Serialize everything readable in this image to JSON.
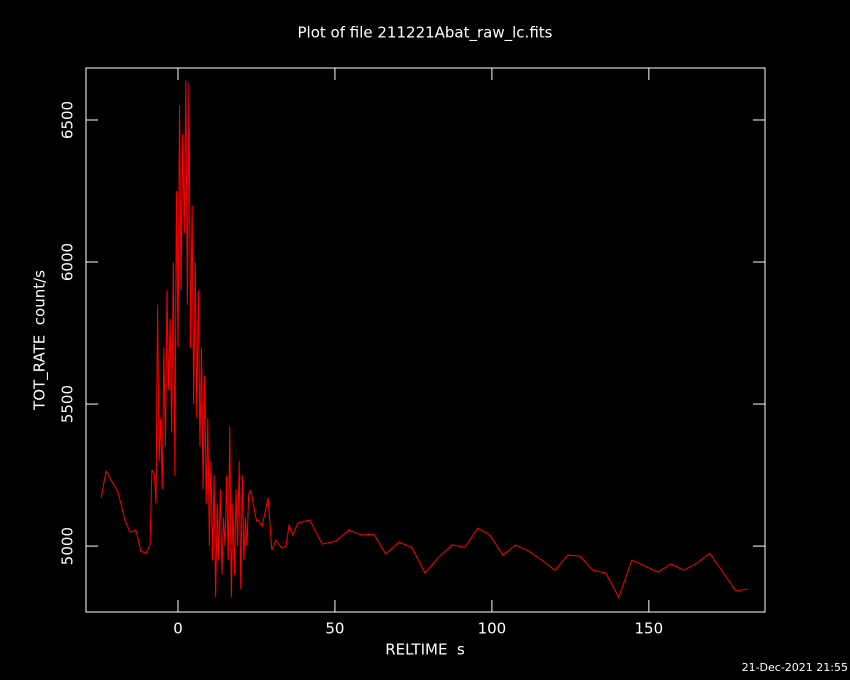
{
  "chart_data": {
    "type": "line",
    "title": "Plot of file 211221Abat_raw_lc.fits",
    "x_label": "RELTIME  s",
    "y_label": "TOT_RATE  count/s",
    "timestamp": "21-Dec-2021 21:55",
    "xlim": [
      -29.3,
      187
    ],
    "ylim": [
      4768,
      6683
    ],
    "xticks": [
      0,
      50,
      100,
      150
    ],
    "yticks": [
      5000,
      5500,
      6000,
      6500
    ],
    "x": [
      -24.5,
      -22.9,
      -19.1,
      -16.9,
      -15.3,
      -13.4,
      -11.8,
      -10.2,
      -8.9,
      -8.3,
      -7.5,
      -7.0,
      -6.5,
      -6.0,
      -5.5,
      -5.0,
      -4.5,
      -4.0,
      -3.5,
      -3.0,
      -2.5,
      -2.0,
      -1.5,
      -1.0,
      -0.5,
      0.0,
      0.5,
      1.0,
      1.5,
      2.0,
      2.5,
      3.0,
      3.5,
      4.0,
      4.5,
      5.0,
      5.5,
      6.0,
      6.5,
      7.0,
      7.5,
      8.0,
      8.5,
      9.0,
      9.5,
      10.0,
      10.5,
      11.0,
      11.5,
      12.0,
      12.5,
      13.0,
      13.5,
      14.0,
      14.5,
      15.0,
      15.5,
      16.0,
      16.5,
      17.0,
      17.5,
      18.0,
      18.5,
      19.0,
      19.5,
      20.0,
      20.5,
      21.0,
      21.5,
      22.0,
      22.5,
      23.0,
      23.5,
      24.0,
      24.5,
      25.0,
      25.5,
      26.8,
      28.7,
      29.9,
      31.2,
      33.1,
      34.4,
      35.4,
      36.6,
      38.2,
      42.0,
      45.9,
      50.3,
      54.5,
      58.6,
      62.4,
      66.2,
      70.4,
      74.5,
      78.7,
      82.8,
      87.3,
      91.4,
      95.5,
      99.4,
      103.5,
      107.6,
      111.8,
      115.9,
      120.1,
      124.2,
      128.0,
      132.2,
      136.3,
      140.4,
      144.6,
      148.7,
      152.9,
      157.0,
      161.1,
      165.3,
      169.4,
      173.6,
      177.7,
      181.5
    ],
    "series": [
      {
        "name": "TOT_RATE",
        "color": "#ff0000",
        "values": [
          5169,
          5264,
          5190,
          5092,
          5049,
          5056,
          4982,
          4975,
          5004,
          5268,
          5250,
          5150,
          5850,
          5300,
          5450,
          5200,
          5700,
          5350,
          5900,
          5550,
          5800,
          5400,
          6000,
          5250,
          6250,
          5700,
          6550,
          5900,
          6450,
          6100,
          6640,
          5850,
          6630,
          5700,
          6200,
          5500,
          6000,
          5450,
          5900,
          5350,
          5700,
          5200,
          5600,
          5150,
          5450,
          5000,
          5300,
          4950,
          5250,
          4820,
          5150,
          4950,
          5200,
          4900,
          5100,
          5000,
          5250,
          4950,
          5420,
          4820,
          5150,
          4900,
          5200,
          5000,
          5300,
          4850,
          5250,
          4950,
          5100,
          5000,
          5180,
          5195,
          5180,
          5150,
          5120,
          5090,
          5092,
          5070,
          5169,
          4986,
          5021,
          4993,
          5000,
          5074,
          5039,
          5081,
          5092,
          5007,
          5018,
          5056,
          5039,
          5042,
          4972,
          5014,
          4996,
          4905,
          4958,
          5004,
          4996,
          5063,
          5039,
          4968,
          5004,
          4982,
          4951,
          4915,
          4968,
          4965,
          4915,
          4905,
          4820,
          4951,
          4930,
          4908,
          4937,
          4915,
          4940,
          4975,
          4908,
          4842,
          4849
        ]
      }
    ]
  }
}
